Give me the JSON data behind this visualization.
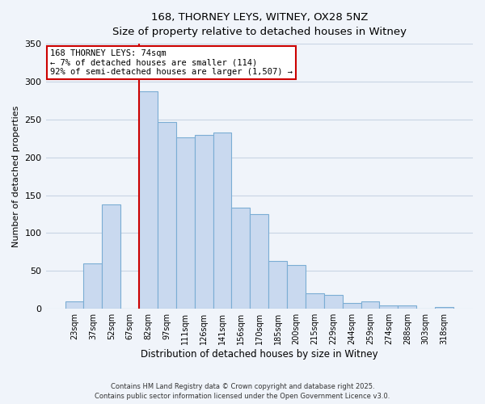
{
  "title": "168, THORNEY LEYS, WITNEY, OX28 5NZ",
  "subtitle": "Size of property relative to detached houses in Witney",
  "xlabel": "Distribution of detached houses by size in Witney",
  "ylabel": "Number of detached properties",
  "bar_labels": [
    "23sqm",
    "37sqm",
    "52sqm",
    "67sqm",
    "82sqm",
    "97sqm",
    "111sqm",
    "126sqm",
    "141sqm",
    "156sqm",
    "170sqm",
    "185sqm",
    "200sqm",
    "215sqm",
    "229sqm",
    "244sqm",
    "259sqm",
    "274sqm",
    "288sqm",
    "303sqm",
    "318sqm"
  ],
  "bar_values": [
    10,
    60,
    138,
    0,
    287,
    247,
    226,
    230,
    233,
    134,
    125,
    63,
    58,
    20,
    18,
    8,
    10,
    4,
    5,
    0,
    2
  ],
  "bar_color": "#c9d9ef",
  "bar_edge_color": "#7badd4",
  "vline_color": "#cc0000",
  "ylim": [
    0,
    350
  ],
  "yticks": [
    0,
    50,
    100,
    150,
    200,
    250,
    300,
    350
  ],
  "annotation_title": "168 THORNEY LEYS: 74sqm",
  "annotation_line1": "← 7% of detached houses are smaller (114)",
  "annotation_line2": "92% of semi-detached houses are larger (1,507) →",
  "annotation_box_color": "#ffffff",
  "annotation_box_edge": "#cc0000",
  "footer1": "Contains HM Land Registry data © Crown copyright and database right 2025.",
  "footer2": "Contains public sector information licensed under the Open Government Licence v3.0.",
  "bg_color": "#f0f4fa",
  "grid_color": "#c8d4e4"
}
